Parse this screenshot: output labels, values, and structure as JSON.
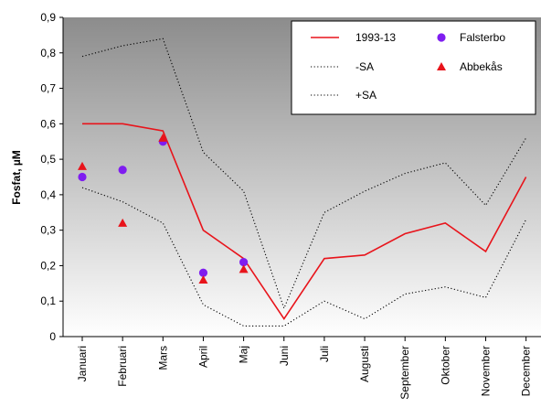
{
  "chart_data": {
    "type": "line",
    "ylabel": "Fosfat, µM",
    "ylim": [
      0,
      0.9
    ],
    "y_ticks": [
      "0",
      "0,1",
      "0,2",
      "0,3",
      "0,4",
      "0,5",
      "0,6",
      "0,7",
      "0,8",
      "0,9"
    ],
    "categories": [
      "Januari",
      "Februari",
      "Mars",
      "April",
      "Maj",
      "Juni",
      "Juli",
      "Augusti",
      "September",
      "Oktober",
      "November",
      "December"
    ],
    "grid": false,
    "background": "vertical gradient, dark grey at top to white at bottom",
    "legend_position": "top-right",
    "legend": [
      {
        "label": "1993-13",
        "kind": "line"
      },
      {
        "label": "-SA",
        "kind": "dotted"
      },
      {
        "label": "+SA",
        "kind": "dotted"
      },
      {
        "label": "Falsterbo",
        "kind": "circle"
      },
      {
        "label": "Abbekås",
        "kind": "triangle"
      }
    ],
    "series": [
      {
        "name": "1993-13",
        "style": "line",
        "color": "#e8141b",
        "values": [
          0.6,
          0.6,
          0.58,
          0.3,
          0.22,
          0.05,
          0.22,
          0.23,
          0.29,
          0.32,
          0.24,
          0.45
        ]
      },
      {
        "name": "-SA",
        "style": "dotted",
        "color": "#000000",
        "values": [
          0.42,
          0.38,
          0.32,
          0.09,
          0.03,
          0.03,
          0.1,
          0.05,
          0.12,
          0.14,
          0.11,
          0.33
        ]
      },
      {
        "name": "+SA",
        "style": "dotted",
        "color": "#000000",
        "values": [
          0.79,
          0.82,
          0.84,
          0.52,
          0.41,
          0.08,
          0.35,
          0.41,
          0.46,
          0.49,
          0.37,
          0.56
        ]
      },
      {
        "name": "Falsterbo",
        "style": "circle",
        "color": "#7f1df0",
        "values": [
          0.45,
          0.47,
          0.55,
          0.18,
          0.21,
          null,
          null,
          null,
          null,
          null,
          null,
          null
        ]
      },
      {
        "name": "Abbekås",
        "style": "triangle",
        "color": "#e8141b",
        "values": [
          0.48,
          0.32,
          0.56,
          0.16,
          0.19,
          null,
          null,
          null,
          null,
          null,
          null,
          null
        ]
      }
    ]
  }
}
